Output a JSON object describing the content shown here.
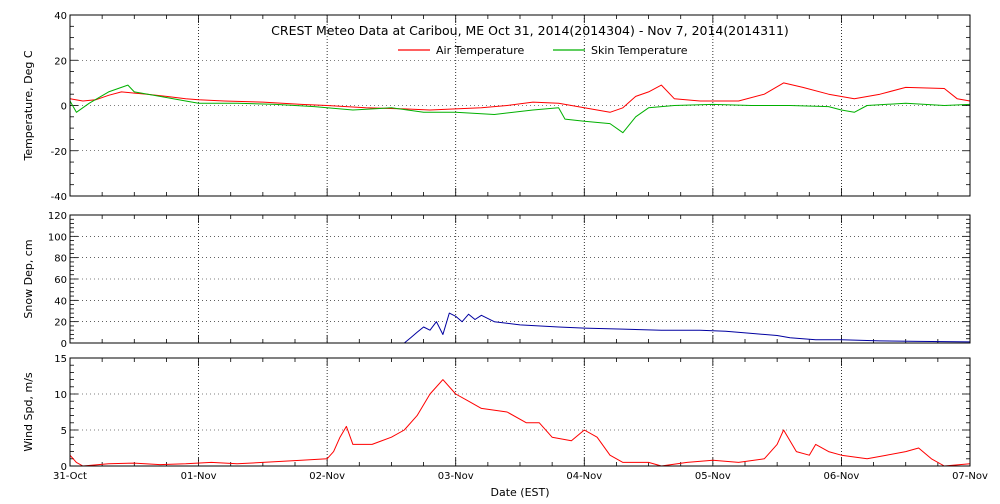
{
  "title": "CREST Meteo Data at Caribou, ME   Oct 31, 2014(2014304) - Nov  7, 2014(2014311)",
  "x_axis": {
    "label": "Date (EST)",
    "ticks": [
      "31-Oct",
      "01-Nov",
      "02-Nov",
      "03-Nov",
      "04-Nov",
      "05-Nov",
      "06-Nov",
      "07-Nov"
    ],
    "range_days": [
      0,
      7
    ]
  },
  "colors": {
    "air_temperature": "#ff0000",
    "skin_temperature": "#00b000",
    "snow_depth": "#0000a0",
    "wind_speed": "#ff0000"
  },
  "chart_data": [
    {
      "type": "line",
      "panel": "temperature",
      "ylabel": "Temperature, Deg C",
      "ylim": [
        -40,
        40
      ],
      "yticks": [
        -40,
        -20,
        0,
        20,
        40
      ],
      "grid": true,
      "legend_position": "top-center",
      "series": [
        {
          "name": "Air Temperature",
          "color": "#ff0000",
          "points": [
            [
              0,
              3
            ],
            [
              0.1,
              2
            ],
            [
              0.2,
              2.5
            ],
            [
              0.3,
              4.5
            ],
            [
              0.4,
              6
            ],
            [
              0.5,
              5.5
            ],
            [
              0.6,
              5
            ],
            [
              0.75,
              4
            ],
            [
              0.9,
              3
            ],
            [
              1.0,
              2.5
            ],
            [
              1.2,
              2
            ],
            [
              1.5,
              1.5
            ],
            [
              1.8,
              0.5
            ],
            [
              2.0,
              0
            ],
            [
              2.3,
              -1
            ],
            [
              2.6,
              -1.5
            ],
            [
              2.8,
              -2
            ],
            [
              3.0,
              -1.5
            ],
            [
              3.2,
              -1
            ],
            [
              3.4,
              0
            ],
            [
              3.6,
              1.5
            ],
            [
              3.8,
              1
            ],
            [
              4.0,
              -1
            ],
            [
              4.2,
              -3
            ],
            [
              4.3,
              -1
            ],
            [
              4.4,
              4
            ],
            [
              4.5,
              6
            ],
            [
              4.6,
              9
            ],
            [
              4.7,
              3
            ],
            [
              4.9,
              2
            ],
            [
              5.0,
              2
            ],
            [
              5.2,
              2
            ],
            [
              5.4,
              5
            ],
            [
              5.55,
              10
            ],
            [
              5.7,
              8
            ],
            [
              5.9,
              5
            ],
            [
              6.1,
              3
            ],
            [
              6.3,
              5
            ],
            [
              6.5,
              8
            ],
            [
              6.8,
              7.5
            ],
            [
              6.9,
              3
            ],
            [
              7.0,
              2
            ]
          ]
        },
        {
          "name": "Skin Temperature",
          "color": "#00b000",
          "points": [
            [
              0,
              2
            ],
            [
              0.05,
              -3
            ],
            [
              0.15,
              1
            ],
            [
              0.3,
              6
            ],
            [
              0.4,
              8
            ],
            [
              0.45,
              9
            ],
            [
              0.5,
              6
            ],
            [
              0.7,
              4
            ],
            [
              0.9,
              2
            ],
            [
              1.0,
              1
            ],
            [
              1.3,
              1
            ],
            [
              1.6,
              0.5
            ],
            [
              1.9,
              -0.5
            ],
            [
              2.2,
              -2
            ],
            [
              2.5,
              -1
            ],
            [
              2.75,
              -3
            ],
            [
              3.0,
              -3
            ],
            [
              3.3,
              -4
            ],
            [
              3.6,
              -2
            ],
            [
              3.8,
              -1
            ],
            [
              3.85,
              -6
            ],
            [
              4.0,
              -7
            ],
            [
              4.2,
              -8
            ],
            [
              4.3,
              -12
            ],
            [
              4.4,
              -5
            ],
            [
              4.5,
              -1
            ],
            [
              4.7,
              0
            ],
            [
              5.0,
              0.5
            ],
            [
              5.3,
              0
            ],
            [
              5.6,
              0
            ],
            [
              5.9,
              -0.5
            ],
            [
              6.0,
              -2
            ],
            [
              6.1,
              -3
            ],
            [
              6.2,
              0
            ],
            [
              6.5,
              1
            ],
            [
              6.8,
              0
            ],
            [
              7.0,
              0.5
            ]
          ]
        }
      ]
    },
    {
      "type": "line",
      "panel": "snow_depth",
      "ylabel": "Snow Dep, cm",
      "ylim": [
        0,
        120
      ],
      "yticks": [
        0,
        20,
        40,
        60,
        80,
        100,
        120
      ],
      "grid": true,
      "series": [
        {
          "color": "#0000a0",
          "points": [
            [
              2.6,
              0
            ],
            [
              2.65,
              5
            ],
            [
              2.7,
              10
            ],
            [
              2.75,
              15
            ],
            [
              2.8,
              12
            ],
            [
              2.85,
              20
            ],
            [
              2.9,
              8
            ],
            [
              2.95,
              28
            ],
            [
              3.0,
              25
            ],
            [
              3.05,
              20
            ],
            [
              3.1,
              27
            ],
            [
              3.15,
              22
            ],
            [
              3.2,
              26
            ],
            [
              3.3,
              20
            ],
            [
              3.5,
              17
            ],
            [
              3.8,
              15
            ],
            [
              4.0,
              14
            ],
            [
              4.3,
              13
            ],
            [
              4.6,
              12
            ],
            [
              4.9,
              12
            ],
            [
              5.1,
              11
            ],
            [
              5.3,
              9
            ],
            [
              5.5,
              7
            ],
            [
              5.6,
              5
            ],
            [
              5.8,
              3
            ],
            [
              6.0,
              3
            ],
            [
              6.3,
              2
            ],
            [
              6.6,
              1.5
            ],
            [
              7.0,
              1
            ]
          ]
        }
      ]
    },
    {
      "type": "line",
      "panel": "wind_speed",
      "ylabel": "Wind Spd, m/s",
      "ylim": [
        0,
        15
      ],
      "yticks": [
        0,
        5,
        10,
        15
      ],
      "grid": true,
      "series": [
        {
          "color": "#ff0000",
          "points": [
            [
              0,
              1.5
            ],
            [
              0.05,
              0.5
            ],
            [
              0.1,
              0
            ],
            [
              0.3,
              0.3
            ],
            [
              0.5,
              0.4
            ],
            [
              0.7,
              0.2
            ],
            [
              0.9,
              0.3
            ],
            [
              1.1,
              0.5
            ],
            [
              1.3,
              0.3
            ],
            [
              1.5,
              0.5
            ],
            [
              1.8,
              0.8
            ],
            [
              2.0,
              1.0
            ],
            [
              2.05,
              2
            ],
            [
              2.1,
              4
            ],
            [
              2.15,
              5.5
            ],
            [
              2.2,
              3
            ],
            [
              2.35,
              3
            ],
            [
              2.5,
              4
            ],
            [
              2.6,
              5
            ],
            [
              2.7,
              7
            ],
            [
              2.8,
              10
            ],
            [
              2.9,
              12
            ],
            [
              3.0,
              10
            ],
            [
              3.1,
              9
            ],
            [
              3.2,
              8
            ],
            [
              3.4,
              7.5
            ],
            [
              3.55,
              6
            ],
            [
              3.65,
              6
            ],
            [
              3.75,
              4
            ],
            [
              3.9,
              3.5
            ],
            [
              4.0,
              5
            ],
            [
              4.1,
              4
            ],
            [
              4.2,
              1.5
            ],
            [
              4.3,
              0.5
            ],
            [
              4.5,
              0.5
            ],
            [
              4.6,
              0
            ],
            [
              4.8,
              0.5
            ],
            [
              5.0,
              0.8
            ],
            [
              5.2,
              0.5
            ],
            [
              5.4,
              1.0
            ],
            [
              5.5,
              3
            ],
            [
              5.55,
              5
            ],
            [
              5.65,
              2
            ],
            [
              5.75,
              1.5
            ],
            [
              5.8,
              3
            ],
            [
              5.9,
              2
            ],
            [
              6.0,
              1.5
            ],
            [
              6.2,
              1
            ],
            [
              6.35,
              1.5
            ],
            [
              6.5,
              2
            ],
            [
              6.6,
              2.5
            ],
            [
              6.7,
              1
            ],
            [
              6.8,
              0
            ],
            [
              7.0,
              0.3
            ]
          ]
        }
      ]
    }
  ]
}
